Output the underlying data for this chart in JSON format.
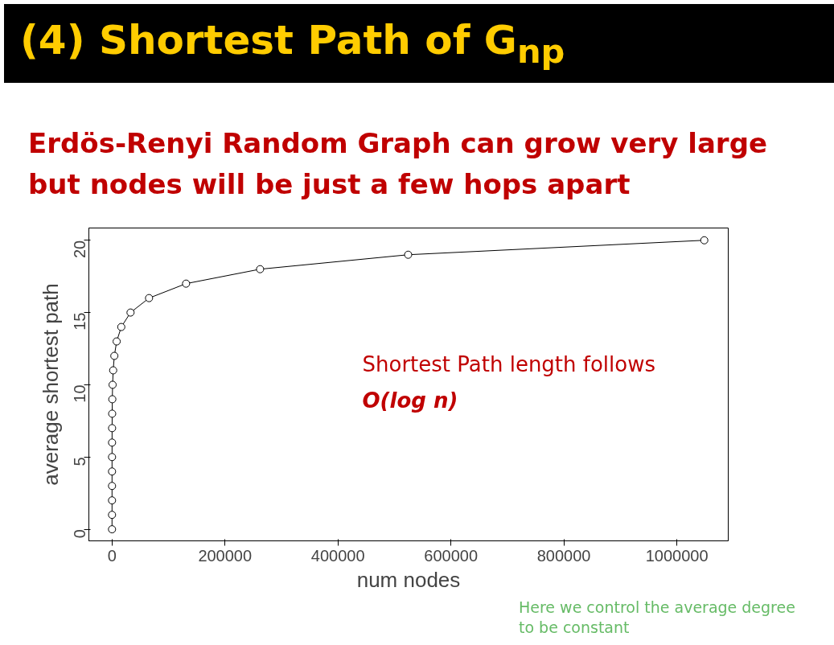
{
  "chart_data": {
    "type": "line",
    "title": "(4) Shortest Path of G$_{np}$",
    "subtitle": "Erdös-Renyi Random Graph can grow very large but nodes will be just a few hops apart",
    "xlabel": "num nodes",
    "ylabel": "average shortest path",
    "x": [
      1,
      2,
      4,
      8,
      16,
      32,
      64,
      128,
      256,
      512,
      1024,
      2048,
      4096,
      8192,
      16384,
      32768,
      65536,
      131072,
      262144,
      524288,
      1048576
    ],
    "series": [
      {
        "color": "#000000",
        "values": [
          0,
          1,
          2,
          3,
          4,
          5,
          6,
          7,
          8,
          9,
          10,
          11,
          12,
          13,
          14,
          15,
          16,
          17,
          18,
          19,
          20
        ]
      }
    ],
    "xlim": [
      -41000,
      1091000
    ],
    "ylim": [
      -0.8,
      20.85
    ],
    "xticks": [
      0,
      200000,
      400000,
      600000,
      800000,
      1000000
    ],
    "yticks": [
      0,
      5,
      10,
      15,
      20
    ],
    "grid": false,
    "marker": "circle",
    "line_style": "solid",
    "annotations": [
      "Shortest Path length follows O(log n)",
      "Here we control the average degree to be constant"
    ]
  }
}
